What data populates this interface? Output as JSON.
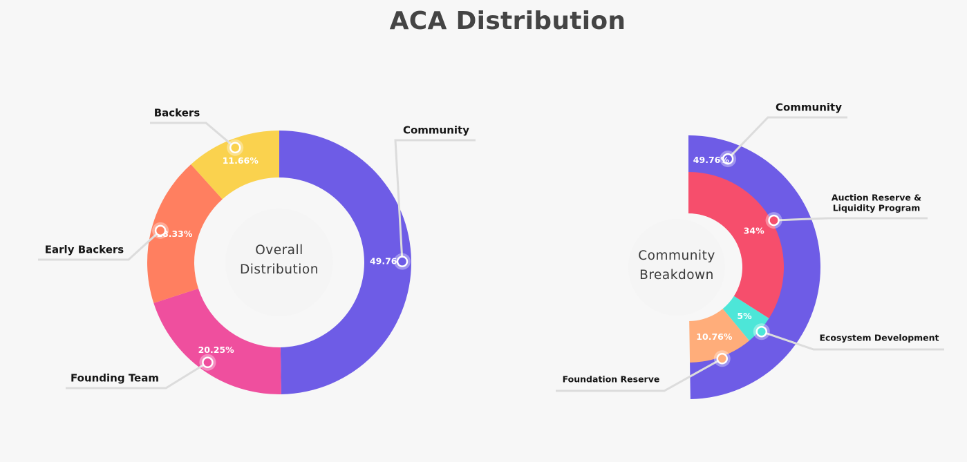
{
  "title": "ACA Distribution",
  "colors": {
    "background": "#f7f7f7",
    "community": "#6e5ce6",
    "founding_team": "#ef4f9e",
    "early_backers": "#ff7f60",
    "backers": "#fad24e",
    "auction_reserve": "#f64e6c",
    "ecosystem": "#4de6d8",
    "foundation_reserve": "#ffad7a"
  },
  "chart_data": [
    {
      "type": "pie",
      "center_label": [
        "Overall",
        "Distribution"
      ],
      "slices": [
        {
          "label": "Community",
          "value": 49.76,
          "display": "49.76%",
          "color": "#6e5ce6"
        },
        {
          "label": "Founding Team",
          "value": 20.25,
          "display": "20.25%",
          "color": "#ef4f9e"
        },
        {
          "label": "Early Backers",
          "value": 18.33,
          "display": "18.33%",
          "color": "#ff7f60"
        },
        {
          "label": "Backers",
          "value": 11.66,
          "display": "11.66%",
          "color": "#fad24e"
        }
      ]
    },
    {
      "type": "pie",
      "center_label": [
        "Community",
        "Breakdown"
      ],
      "outer": {
        "label": "Community",
        "value": 49.76,
        "display": "49.76%",
        "color": "#6e5ce6"
      },
      "slices": [
        {
          "label": "Auction Reserve & Liquidity Program",
          "label_lines": [
            "Auction Reserve &",
            "Liquidity Program"
          ],
          "value": 34,
          "display": "34%",
          "color": "#f64e6c"
        },
        {
          "label": "Ecosystem Development",
          "value": 5,
          "display": "5%",
          "color": "#4de6d8"
        },
        {
          "label": "Foundation Reserve",
          "value": 10.76,
          "display": "10.76%",
          "color": "#ffad7a"
        }
      ]
    }
  ]
}
